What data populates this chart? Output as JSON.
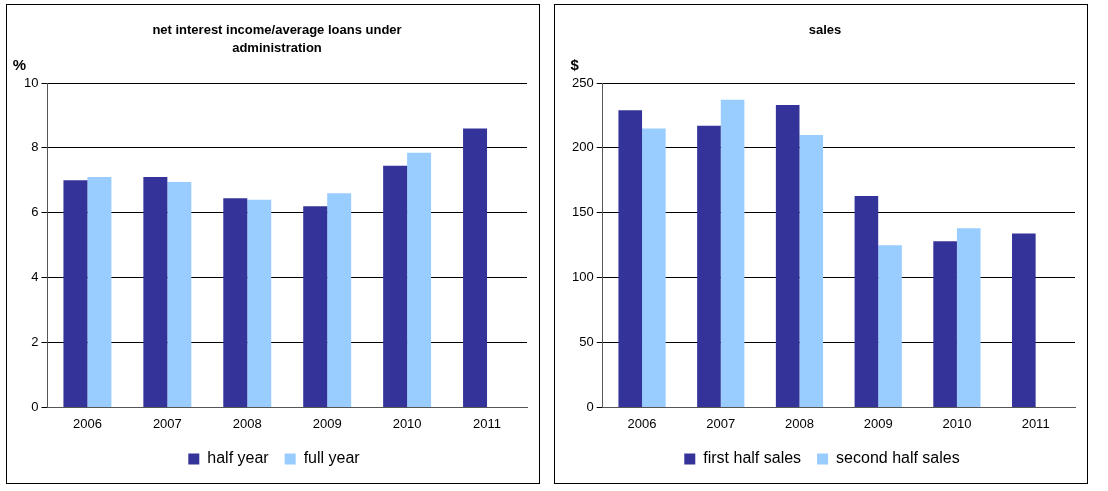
{
  "chart_data": [
    {
      "type": "bar",
      "title": "net interest income/average loans under administration",
      "ylabel": "%",
      "categories": [
        "2006",
        "2007",
        "2008",
        "2009",
        "2010",
        "2011"
      ],
      "series": [
        {
          "name": "half year",
          "color": "#333399",
          "values": [
            7.0,
            7.1,
            6.45,
            6.2,
            7.45,
            8.6
          ]
        },
        {
          "name": "full year",
          "color": "#99ccff",
          "values": [
            7.1,
            6.95,
            6.4,
            6.6,
            7.85,
            null
          ]
        }
      ],
      "ylim": [
        0,
        10
      ],
      "yticks": [
        0,
        2,
        4,
        6,
        8,
        10
      ],
      "grid": "y",
      "legend": "bottom"
    },
    {
      "type": "bar",
      "title": "sales",
      "ylabel": "$",
      "categories": [
        "2006",
        "2007",
        "2008",
        "2009",
        "2010",
        "2011"
      ],
      "series": [
        {
          "name": "first half sales",
          "color": "#333399",
          "values": [
            229,
            217,
            233,
            163,
            128,
            134
          ]
        },
        {
          "name": "second half sales",
          "color": "#99ccff",
          "values": [
            215,
            237,
            210,
            125,
            138,
            null
          ]
        }
      ],
      "ylim": [
        0,
        250
      ],
      "yticks": [
        0,
        50,
        100,
        150,
        200,
        250
      ],
      "grid": "y",
      "legend": "bottom"
    }
  ]
}
